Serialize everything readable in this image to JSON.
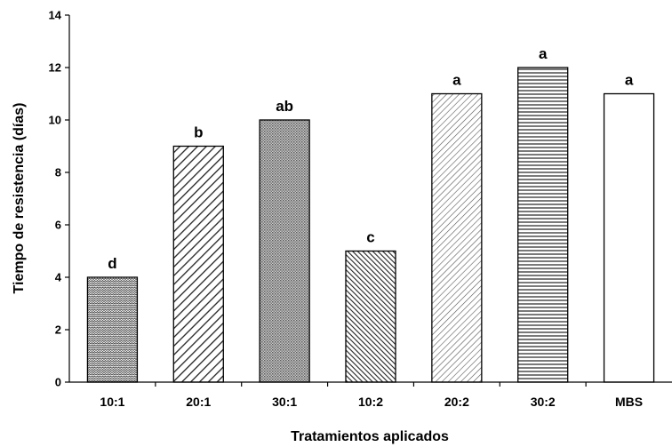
{
  "chart_data": {
    "type": "bar",
    "categories": [
      "10:1",
      "20:1",
      "30:1",
      "10:2",
      "20:2",
      "30:2",
      "MBS"
    ],
    "values": [
      4,
      9,
      10,
      5,
      11,
      12,
      11
    ],
    "significance_letters": [
      "d",
      "b",
      "ab",
      "c",
      "a",
      "a",
      "a"
    ],
    "bar_patterns": [
      "zigzag",
      "diagonal-wide",
      "dense-dots",
      "diagonal-dense",
      "diagonal-fine",
      "horizontal-lines",
      "solid-white"
    ],
    "xlabel": "Tratamientos aplicados",
    "ylabel": "Tiempo de resistencia (días)",
    "ylim": [
      0,
      14
    ],
    "yticks": [
      0,
      2,
      4,
      6,
      8,
      10,
      12,
      14
    ],
    "grid": false,
    "legend": "none"
  }
}
